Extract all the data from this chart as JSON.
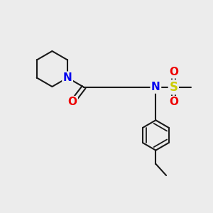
{
  "bg_color": "#ececec",
  "bond_color": "#1a1a1a",
  "N_color": "#0000ee",
  "O_color": "#ee0000",
  "S_color": "#cccc00",
  "line_width": 1.5,
  "font_size": 11,
  "figsize": [
    3.0,
    3.0
  ],
  "dpi": 100,
  "xlim": [
    0,
    10
  ],
  "ylim": [
    0,
    10
  ]
}
